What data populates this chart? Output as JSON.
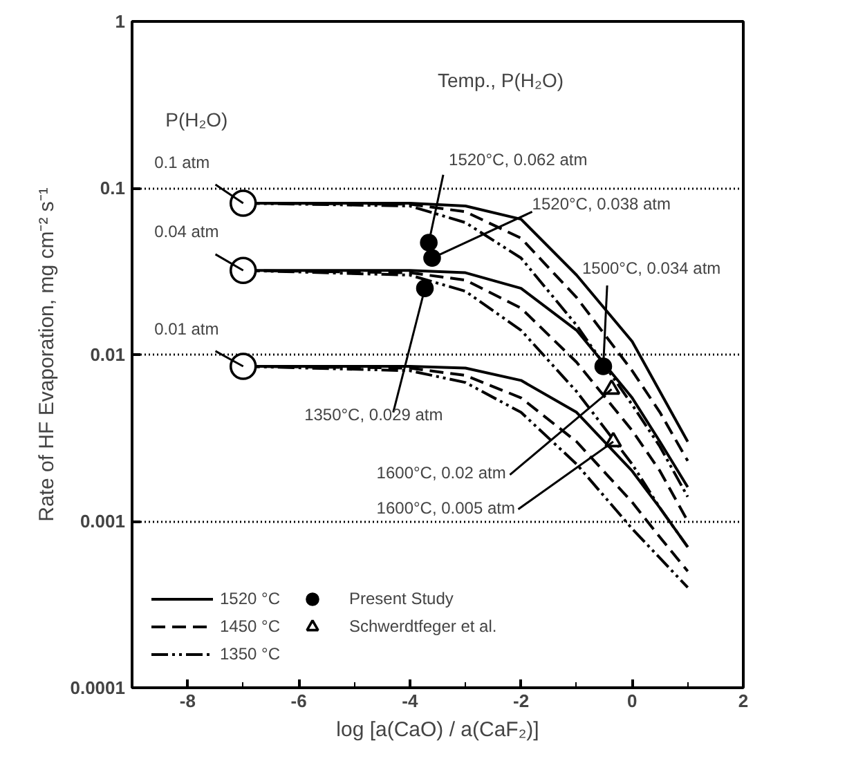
{
  "chart_data": {
    "type": "line",
    "xlabel": "log [a(CaO) / a(CaF₂)]",
    "ylabel": "Rate of HF Evaporation, mg cm⁻² s⁻¹",
    "xlim": [
      -9,
      2
    ],
    "xticks": [
      -8,
      -6,
      -4,
      -2,
      0,
      2
    ],
    "ylim": [
      0.0001,
      1
    ],
    "yticks": [
      0.0001,
      0.001,
      0.01,
      0.1,
      1
    ],
    "log": "y",
    "grid": "y",
    "legend": "bottom left",
    "series": [
      {
        "name": "1520 °C",
        "color": "#000000",
        "line_style": "solid",
        "x": [
          -7,
          -4,
          -3,
          -2,
          -1,
          0,
          0.5,
          1
        ],
        "values": [
          0.081,
          0.081,
          0.078,
          0.065,
          0.03,
          0.012,
          0.006,
          0.003
        ]
      },
      {
        "name": "1450 °C",
        "color": "#000000",
        "line_style": "dashed",
        "x": [
          -7,
          -4,
          -3,
          -2,
          -1,
          0,
          0.5,
          1
        ],
        "values": [
          0.081,
          0.08,
          0.072,
          0.05,
          0.022,
          0.008,
          0.0045,
          0.0023
        ]
      },
      {
        "name": "1350 °C",
        "color": "#000000",
        "line_style": "dashdot",
        "x": [
          -7,
          -4,
          -3,
          -2,
          -1,
          0,
          0.5,
          1
        ],
        "values": [
          0.081,
          0.078,
          0.062,
          0.038,
          0.015,
          0.005,
          0.0028,
          0.0014
        ]
      },
      {
        "color": "#000000",
        "line_style": "solid",
        "x": [
          -7,
          -4,
          -3,
          -2,
          -1,
          0,
          0.5,
          1
        ],
        "values": [
          0.032,
          0.032,
          0.031,
          0.025,
          0.014,
          0.0055,
          0.003,
          0.0016
        ]
      },
      {
        "color": "#000000",
        "line_style": "dashed",
        "x": [
          -7,
          -4,
          -3,
          -2,
          -1,
          0,
          0.5,
          1
        ],
        "values": [
          0.032,
          0.031,
          0.028,
          0.019,
          0.009,
          0.0035,
          0.002,
          0.001
        ]
      },
      {
        "color": "#000000",
        "line_style": "dashdot",
        "x": [
          -7,
          -4,
          -3,
          -2,
          -1,
          0,
          0.5,
          1
        ],
        "values": [
          0.032,
          0.03,
          0.024,
          0.014,
          0.006,
          0.0022,
          0.0012,
          0.0007
        ]
      },
      {
        "color": "#000000",
        "line_style": "solid",
        "x": [
          -7,
          -4,
          -3,
          -2,
          -1,
          0,
          0.5,
          1
        ],
        "values": [
          0.0085,
          0.0085,
          0.0083,
          0.007,
          0.0045,
          0.002,
          0.0012,
          0.0007
        ]
      },
      {
        "color": "#000000",
        "line_style": "dashed",
        "x": [
          -7,
          -4,
          -3,
          -2,
          -1,
          0,
          0.5,
          1
        ],
        "values": [
          0.0085,
          0.0083,
          0.0075,
          0.0055,
          0.003,
          0.0013,
          0.0008,
          0.0005
        ]
      },
      {
        "color": "#000000",
        "line_style": "dashdot",
        "x": [
          -7,
          -4,
          -3,
          -2,
          -1,
          0,
          0.5,
          1
        ],
        "values": [
          0.0085,
          0.008,
          0.0068,
          0.0045,
          0.0022,
          0.0009,
          0.0006,
          0.0004
        ]
      },
      {
        "type": "scatter",
        "marker": "circle",
        "color": "#ffffff",
        "x": [
          -7,
          -7,
          -7
        ],
        "values": [
          0.081,
          0.032,
          0.0085
        ]
      },
      {
        "type": "scatter",
        "name": "Present Study",
        "marker": "circle",
        "color": "#000000",
        "x": [
          -3.66,
          -3.6,
          -3.73,
          -0.52
        ],
        "values": [
          0.047,
          0.038,
          0.025,
          0.0085
        ]
      },
      {
        "type": "scatter",
        "name": "Schwerdtfeger et al.",
        "marker": "triangle",
        "color": "#ffffff",
        "x": [
          -0.37,
          -0.34
        ],
        "values": [
          0.0062,
          0.003
        ]
      }
    ],
    "annotations": [
      "P(H₂O)",
      "Temp., P(H₂O)",
      {
        "text": "0.1 atm",
        "x": -7,
        "y": 0.081
      },
      {
        "text": "0.04 atm",
        "x": -7,
        "y": 0.032
      },
      {
        "text": "0.01 atm",
        "x": -7,
        "y": 0.0085
      },
      {
        "text": "1520°C, 0.062 atm",
        "x": -3.66,
        "y": 0.047
      },
      {
        "text": "1520°C, 0.038 atm",
        "x": -3.6,
        "y": 0.038
      },
      {
        "text": "1350°C, 0.029 atm",
        "x": -3.73,
        "y": 0.025
      },
      {
        "text": "1500°C, 0.034 atm",
        "x": -0.52,
        "y": 0.0085
      },
      {
        "text": "1600°C, 0.02 atm",
        "x": -0.37,
        "y": 0.0062
      },
      {
        "text": "1600°C, 0.005 atm",
        "x": -0.34,
        "y": 0.003
      }
    ]
  }
}
